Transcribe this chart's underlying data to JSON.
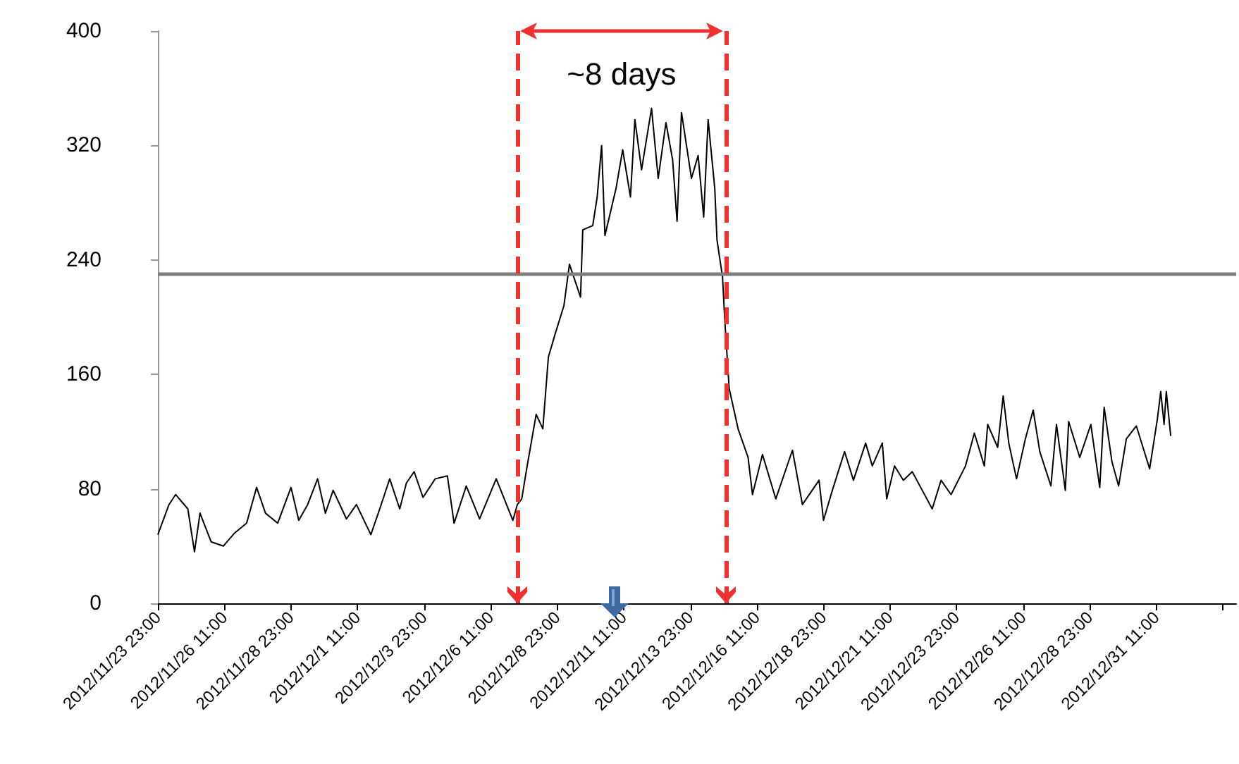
{
  "chart_data": {
    "type": "line",
    "xlim": [
      "2012-11-23T23:00",
      "2013-01-03T11:00"
    ],
    "xticks": [
      {
        "value": "2012-11-23T23:00",
        "label": "2012/11/23 23:00"
      },
      {
        "value": "2012-11-26T11:00",
        "label": "2012/11/26 11:00"
      },
      {
        "value": "2012-11-28T23:00",
        "label": "2012/11/28 23:00"
      },
      {
        "value": "2012-12-01T11:00",
        "label": "2012/12/1 11:00"
      },
      {
        "value": "2012-12-03T23:00",
        "label": "2012/12/3 23:00"
      },
      {
        "value": "2012-12-06T11:00",
        "label": "2012/12/6 11:00"
      },
      {
        "value": "2012-12-08T23:00",
        "label": "2012/12/8 23:00"
      },
      {
        "value": "2012-12-11T11:00",
        "label": "2012/12/11 11:00"
      },
      {
        "value": "2012-12-13T23:00",
        "label": "2012/12/13 23:00"
      },
      {
        "value": "2012-12-16T11:00",
        "label": "2012/12/16 11:00"
      },
      {
        "value": "2012-12-18T23:00",
        "label": "2012/12/18 23:00"
      },
      {
        "value": "2012-12-21T11:00",
        "label": "2012/12/21 11:00"
      },
      {
        "value": "2012-12-23T23:00",
        "label": "2012/12/23 23:00"
      },
      {
        "value": "2012-12-26T11:00",
        "label": "2012/12/26 11:00"
      },
      {
        "value": "2012-12-28T23:00",
        "label": "2012/12/28 23:00"
      },
      {
        "value": "2012-12-31T11:00",
        "label": "2012/12/31 11:00"
      },
      {
        "value": "2013-01-02T23:00",
        "label": null
      }
    ],
    "ylim": [
      0,
      400
    ],
    "yticks": [
      0,
      80,
      160,
      240,
      320,
      400
    ],
    "grid": false,
    "marker": "none",
    "x": [
      "2012-11-23T23:00",
      "2012-11-24T09:00",
      "2012-11-24T15:00",
      "2012-11-25T02:00",
      "2012-11-25T08:00",
      "2012-11-25T13:00",
      "2012-11-25T23:00",
      "2012-11-26T10:00",
      "2012-11-26T20:00",
      "2012-11-27T07:00",
      "2012-11-27T16:00",
      "2012-11-28T00:00",
      "2012-11-28T11:00",
      "2012-11-28T23:00",
      "2012-11-29T06:00",
      "2012-11-29T14:00",
      "2012-11-29T23:00",
      "2012-11-30T06:00",
      "2012-11-30T13:00",
      "2012-12-01T01:00",
      "2012-12-01T10:00",
      "2012-12-01T23:00",
      "2012-12-02T07:00",
      "2012-12-02T16:00",
      "2012-12-03T01:00",
      "2012-12-03T07:00",
      "2012-12-03T14:00",
      "2012-12-03T22:00",
      "2012-12-04T09:00",
      "2012-12-04T20:00",
      "2012-12-05T02:00",
      "2012-12-05T13:00",
      "2012-12-06T01:00",
      "2012-12-06T16:00",
      "2012-12-07T07:00",
      "2012-12-07T11:00",
      "2012-12-07T15:00",
      "2012-12-07T19:00",
      "2012-12-08T04:00",
      "2012-12-08T10:00",
      "2012-12-08T15:00",
      "2012-12-08T21:00",
      "2012-12-09T05:00",
      "2012-12-09T10:00",
      "2012-12-09T20:00",
      "2012-12-09T22:00",
      "2012-12-10T07:00",
      "2012-12-10T11:00",
      "2012-12-10T15:00",
      "2012-12-10T18:00",
      "2012-12-11T04:00",
      "2012-12-11T10:00",
      "2012-12-11T17:00",
      "2012-12-11T21:00",
      "2012-12-12T03:00",
      "2012-12-12T12:00",
      "2012-12-12T18:00",
      "2012-12-13T01:00",
      "2012-12-13T07:00",
      "2012-12-13T11:00",
      "2012-12-13T15:00",
      "2012-12-14T00:00",
      "2012-12-14T06:00",
      "2012-12-14T11:00",
      "2012-12-14T15:00",
      "2012-12-14T21:00",
      "2012-12-14T23:00",
      "2012-12-15T04:00",
      "2012-12-15T06:00",
      "2012-12-15T10:00",
      "2012-12-15T18:00",
      "2012-12-16T03:00",
      "2012-12-16T07:00",
      "2012-12-16T16:00",
      "2012-12-17T04:00",
      "2012-12-17T19:00",
      "2012-12-18T04:00",
      "2012-12-18T19:00",
      "2012-12-18T23:00",
      "2012-12-19T07:00",
      "2012-12-19T18:00",
      "2012-12-20T02:00",
      "2012-12-20T13:00",
      "2012-12-20T19:00",
      "2012-12-21T04:00",
      "2012-12-21T08:00",
      "2012-12-21T15:00",
      "2012-12-21T23:00",
      "2012-12-22T07:00",
      "2012-12-22T16:00",
      "2012-12-23T01:00",
      "2012-12-23T09:00",
      "2012-12-23T18:00",
      "2012-12-24T07:00",
      "2012-12-24T15:00",
      "2012-12-25T00:00",
      "2012-12-25T03:00",
      "2012-12-25T12:00",
      "2012-12-25T17:00",
      "2012-12-25T22:00",
      "2012-12-26T05:00",
      "2012-12-26T13:00",
      "2012-12-26T20:00",
      "2012-12-27T02:00",
      "2012-12-27T12:00",
      "2012-12-27T17:00",
      "2012-12-28T01:00",
      "2012-12-28T04:00",
      "2012-12-28T14:00",
      "2012-12-29T00:00",
      "2012-12-29T08:00",
      "2012-12-29T12:00",
      "2012-12-29T19:00",
      "2012-12-30T01:00",
      "2012-12-30T08:00",
      "2012-12-30T17:00",
      "2012-12-31T05:00",
      "2012-12-31T12:00",
      "2012-12-31T15:00",
      "2012-12-31T18:00",
      "2012-12-31T20:00",
      "2013-01-01T00:00"
    ],
    "series": [
      {
        "color": "#000000",
        "values": [
          48,
          69,
          76,
          66,
          36,
          63,
          43,
          40,
          49,
          56,
          81,
          63,
          56,
          81,
          58,
          69,
          87,
          63,
          79,
          59,
          69,
          48,
          66,
          87,
          66,
          84,
          92,
          74,
          87,
          89,
          56,
          82,
          59,
          87,
          58,
          69,
          73,
          92,
          132,
          122,
          172,
          188,
          208,
          237,
          214,
          261,
          264,
          284,
          320,
          257,
          290,
          317,
          284,
          338,
          303,
          346,
          297,
          336,
          310,
          267,
          343,
          297,
          313,
          270,
          338,
          290,
          254,
          228,
          198,
          150,
          122,
          102,
          76,
          104,
          73,
          107,
          69,
          86,
          58,
          79,
          106,
          86,
          112,
          96,
          112,
          73,
          96,
          86,
          92,
          79,
          66,
          86,
          76,
          96,
          119,
          96,
          125,
          109,
          145,
          112,
          87,
          115,
          135,
          106,
          82,
          125,
          79,
          127,
          102,
          125,
          81,
          137,
          99,
          82,
          115,
          124,
          94,
          129,
          148,
          125,
          148,
          117
        ]
      }
    ],
    "ref_lines": [
      {
        "axis": "y",
        "value": 230,
        "color": "#7f7f7f",
        "line_style": "solid"
      },
      {
        "axis": "x",
        "value": "2012-12-07T11:00",
        "color": "#ee3030",
        "line_style": "dashed"
      },
      {
        "axis": "x",
        "value": "2012-12-15T07:00",
        "color": "#ee3030",
        "line_style": "dashed"
      }
    ],
    "annotations": [
      "~8 days"
    ]
  }
}
